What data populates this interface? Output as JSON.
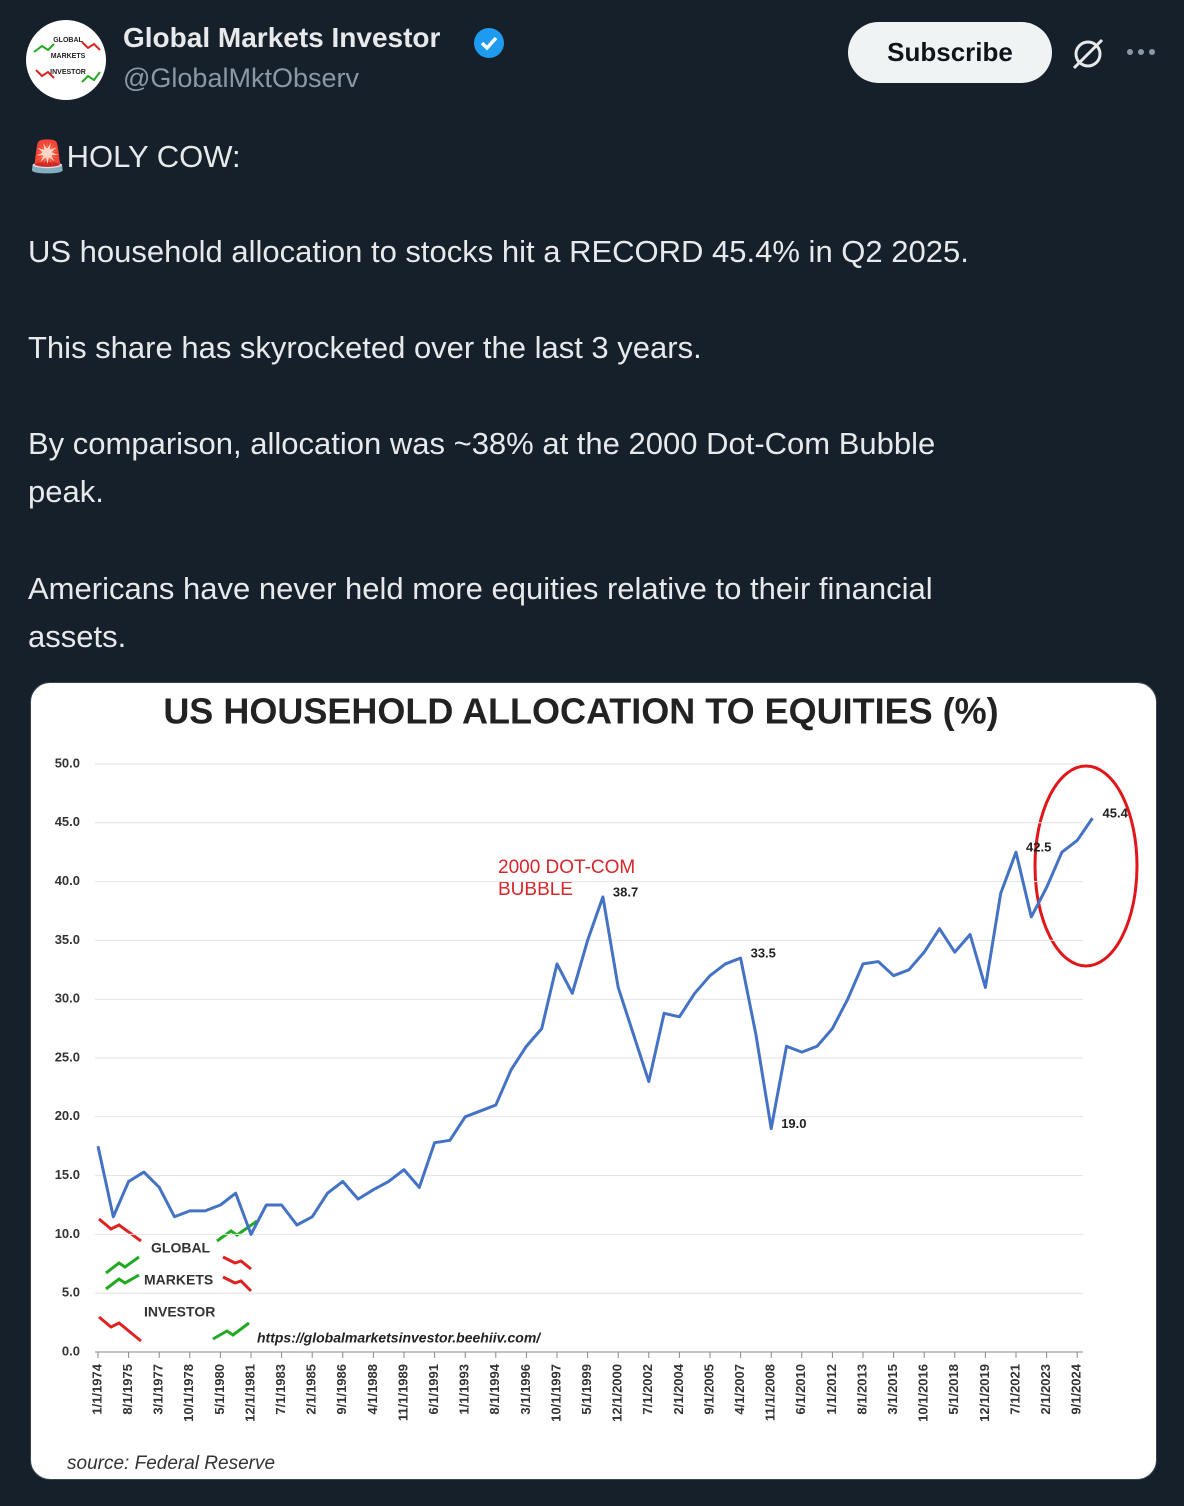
{
  "header": {
    "name": "Global Markets Investor",
    "handle": "@GlobalMktObserv",
    "button": "Subscribe",
    "avatar_text": [
      "GLOBAL",
      "MARKETS",
      "INVESTOR"
    ]
  },
  "post": {
    "paragraphs": [
      [
        "🚨HOLY COW:"
      ],
      [
        "US household allocation to stocks hit a RECORD 45.4% in Q2 2025."
      ],
      [
        "This share has skyrocketed over the last 3 years."
      ],
      [
        "By comparison, allocation was ~38% at the 2000 Dot-Com Bubble",
        "peak."
      ],
      [
        "Americans have never held more equities relative to their financial",
        "assets."
      ]
    ]
  },
  "chart_data": {
    "type": "line",
    "title": "US HOUSEHOLD ALLOCATION TO EQUITIES (%)",
    "categories": [
      "1/1/1974",
      null,
      "8/1/1975",
      null,
      "3/1/1977",
      null,
      "10/1/1978",
      null,
      "5/1/1980",
      null,
      "12/1/1981",
      null,
      "7/1/1983",
      null,
      "2/1/1985",
      null,
      "9/1/1986",
      null,
      "4/1/1988",
      null,
      "11/1/1989",
      null,
      "6/1/1991",
      null,
      "1/1/1993",
      null,
      "8/1/1994",
      null,
      "3/1/1996",
      null,
      "10/1/1997",
      null,
      "5/1/1999",
      null,
      "12/1/2000",
      null,
      "7/1/2002",
      null,
      "2/1/2004",
      null,
      "9/1/2005",
      null,
      "4/1/2007",
      null,
      "11/1/2008",
      null,
      "6/1/2010",
      null,
      "1/1/2012",
      null,
      "8/1/2013",
      null,
      "3/1/2015",
      null,
      "10/1/2016",
      null,
      "5/1/2018",
      null,
      "12/1/2019",
      null,
      "7/1/2021",
      null,
      "2/1/2023",
      null,
      "9/1/2024",
      null
    ],
    "series": [
      {
        "name": "US household allocation to equities",
        "color": "#4472c4",
        "values": [
          17.5,
          11.5,
          14.5,
          15.3,
          14,
          11.5,
          12,
          12,
          12.5,
          13.5,
          10,
          12.5,
          12.5,
          10.8,
          11.5,
          13.5,
          14.5,
          13,
          13.8,
          14.5,
          15.5,
          14,
          17.8,
          18,
          20,
          20.5,
          21,
          24,
          26,
          27.5,
          33,
          30.5,
          35,
          38.7,
          31,
          27,
          23,
          28.8,
          28.5,
          30.5,
          32,
          33,
          33.5,
          27,
          19,
          26,
          25.5,
          26,
          27.5,
          30,
          33,
          33.2,
          32,
          32.5,
          34,
          36,
          34,
          35.5,
          31,
          39,
          42.5,
          37,
          39.5,
          42.5,
          43.5,
          45.4
        ],
        "value_labels": [
          null,
          null,
          null,
          null,
          null,
          null,
          null,
          null,
          null,
          null,
          null,
          null,
          null,
          null,
          null,
          null,
          null,
          null,
          null,
          null,
          null,
          null,
          null,
          null,
          null,
          null,
          null,
          null,
          null,
          null,
          null,
          null,
          null,
          "38.7",
          null,
          null,
          null,
          null,
          null,
          null,
          null,
          null,
          "33.5",
          null,
          "19.0",
          null,
          null,
          null,
          null,
          null,
          null,
          null,
          null,
          null,
          null,
          null,
          null,
          null,
          null,
          null,
          "42.5",
          null,
          null,
          null,
          null,
          "45.4"
        ]
      }
    ],
    "ylim": [
      0,
      50
    ],
    "yticks": [
      {
        "value": 0,
        "label": "0.0"
      },
      {
        "value": 5,
        "label": "5.0"
      },
      {
        "value": 10,
        "label": "10.0"
      },
      {
        "value": 15,
        "label": "15.0"
      },
      {
        "value": 20,
        "label": "20.0"
      },
      {
        "value": 25,
        "label": "25.0"
      },
      {
        "value": 30,
        "label": "30.0"
      },
      {
        "value": 35,
        "label": "35.0"
      },
      {
        "value": 40,
        "label": "40.0"
      },
      {
        "value": 45,
        "label": "45.0"
      },
      {
        "value": 50,
        "label": "50.0"
      }
    ],
    "grid": true,
    "annotation": [
      "2000 DOT-COM",
      "BUBBLE"
    ],
    "watermark": [
      "GLOBAL",
      "MARKETS",
      "INVESTOR"
    ],
    "url": "https://globalmarketsinvestor.beehiiv.com/",
    "source": "source: Federal Reserve"
  }
}
